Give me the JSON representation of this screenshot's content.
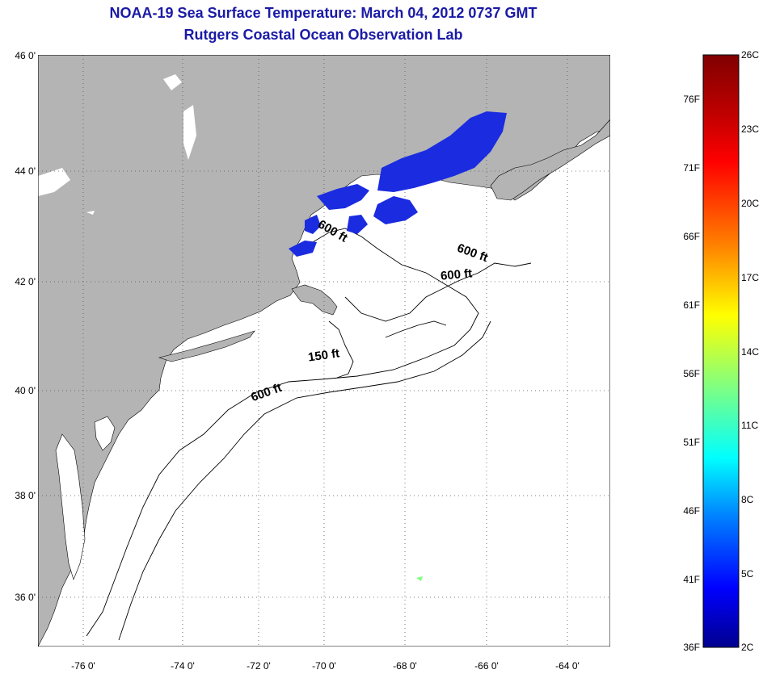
{
  "title": {
    "line1": "NOAA-19 Sea Surface Temperature:  March 04, 2012 0737 GMT",
    "line2": "Rutgers Coastal Ocean Observation Lab"
  },
  "axes": {
    "latitude_labels": [
      "46 0'",
      "44 0'",
      "42 0'",
      "40 0'",
      "38 0'",
      "36 0'"
    ],
    "longitude_labels": [
      "-76 0'",
      "-74 0'",
      "-72 0'",
      "-70 0'",
      "-68 0'",
      "-66 0'",
      "-64 0'"
    ],
    "grid": "dotted"
  },
  "contours": {
    "labels": [
      "600 ft",
      "600 ft",
      "600 ft",
      "150 ft",
      "600 ft"
    ]
  },
  "colorbar": {
    "fahrenheit_labels": [
      "76F",
      "71F",
      "66F",
      "61F",
      "56F",
      "51F",
      "46F",
      "41F",
      "36F"
    ],
    "celsius_labels": [
      "26C",
      "23C",
      "20C",
      "17C",
      "14C",
      "11C",
      "8C",
      "5C",
      "2C"
    ],
    "colors": [
      "#800000",
      "#ff0000",
      "#ff8000",
      "#ffff00",
      "#80ff80",
      "#00ffff",
      "#0080ff",
      "#0000ff",
      "#00008f"
    ]
  },
  "colors": {
    "land": "#b4b4b4",
    "ocean": "#ffffff",
    "sst_cold": "#1a2be0",
    "title": "#1a1aa6"
  }
}
